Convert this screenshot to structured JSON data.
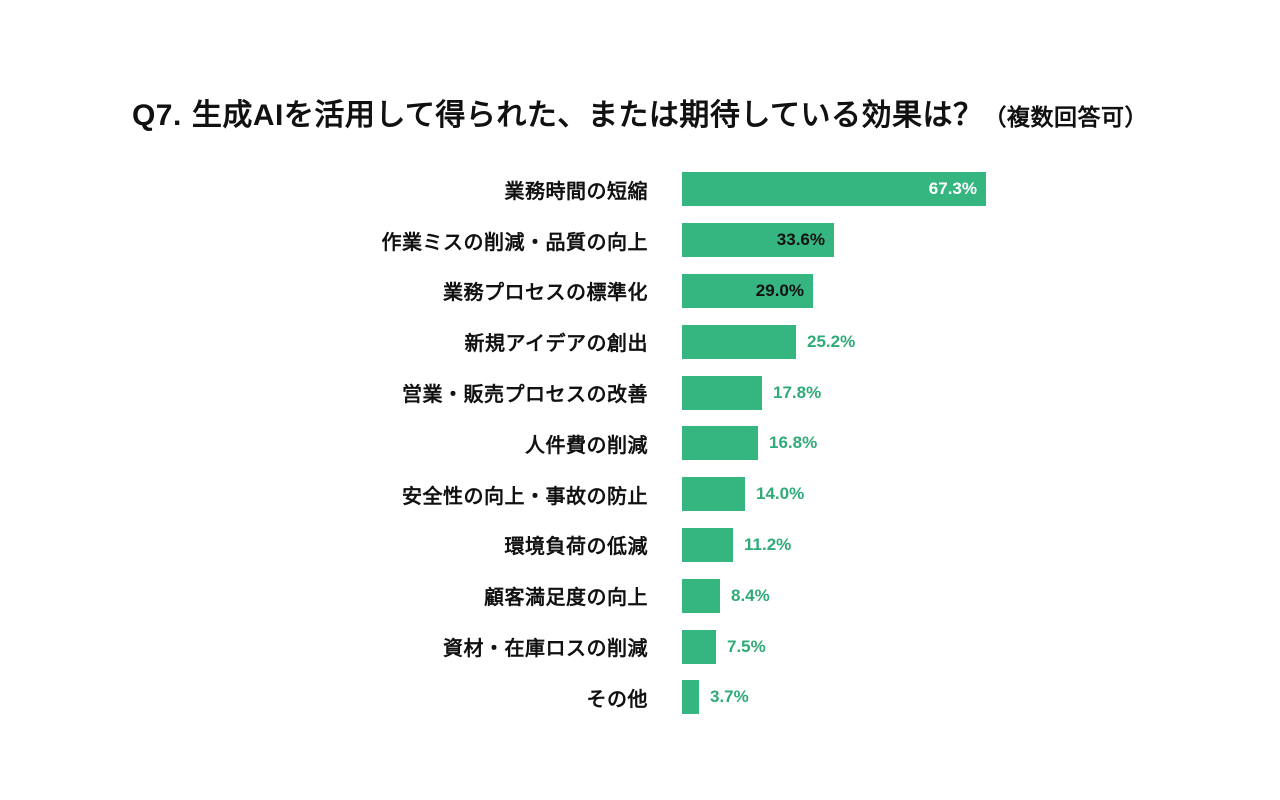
{
  "title": {
    "prefix": "Q7.",
    "main": "生成AIを活用して得られた、または期待している効果は？",
    "note": "（複数回答可）"
  },
  "colors": {
    "background": "#ffffff",
    "title_text": "#111111",
    "category_text": "#111111",
    "bar": "#35b57f",
    "value_outside": "#2fab77"
  },
  "chart_data": {
    "type": "bar",
    "orientation": "horizontal",
    "title": "Q7. 生成AIを活用して得られた、または期待している効果は？（複数回答可）",
    "xlabel": "",
    "ylabel": "",
    "xlim": [
      0,
      70
    ],
    "grid": false,
    "legend": false,
    "bar_color": "#35b57f",
    "categories": [
      "業務時間の短縮",
      "作業ミスの削減・品質の向上",
      "業務プロセスの標準化",
      "新規アイデアの創出",
      "営業・販売プロセスの改善",
      "人件費の削減",
      "安全性の向上・事故の防止",
      "環境負荷の低減",
      "顧客満足度の向上",
      "資材・在庫ロスの削減",
      "その他"
    ],
    "values": [
      67.3,
      33.6,
      29.0,
      25.2,
      17.8,
      16.8,
      14.0,
      11.2,
      8.4,
      7.5,
      3.7
    ],
    "value_labels": [
      "67.3%",
      "33.6%",
      "29.0%",
      "25.2%",
      "17.8%",
      "16.8%",
      "14.0%",
      "11.2%",
      "8.4%",
      "7.5%",
      "3.7%"
    ],
    "label_placements": [
      "inside",
      "inside",
      "inside",
      "outside",
      "outside",
      "outside",
      "outside",
      "outside",
      "outside",
      "outside",
      "outside"
    ],
    "label_colors": [
      "#ffffff",
      "#111111",
      "#111111",
      "#2fab77",
      "#2fab77",
      "#2fab77",
      "#2fab77",
      "#2fab77",
      "#2fab77",
      "#2fab77",
      "#2fab77"
    ]
  }
}
